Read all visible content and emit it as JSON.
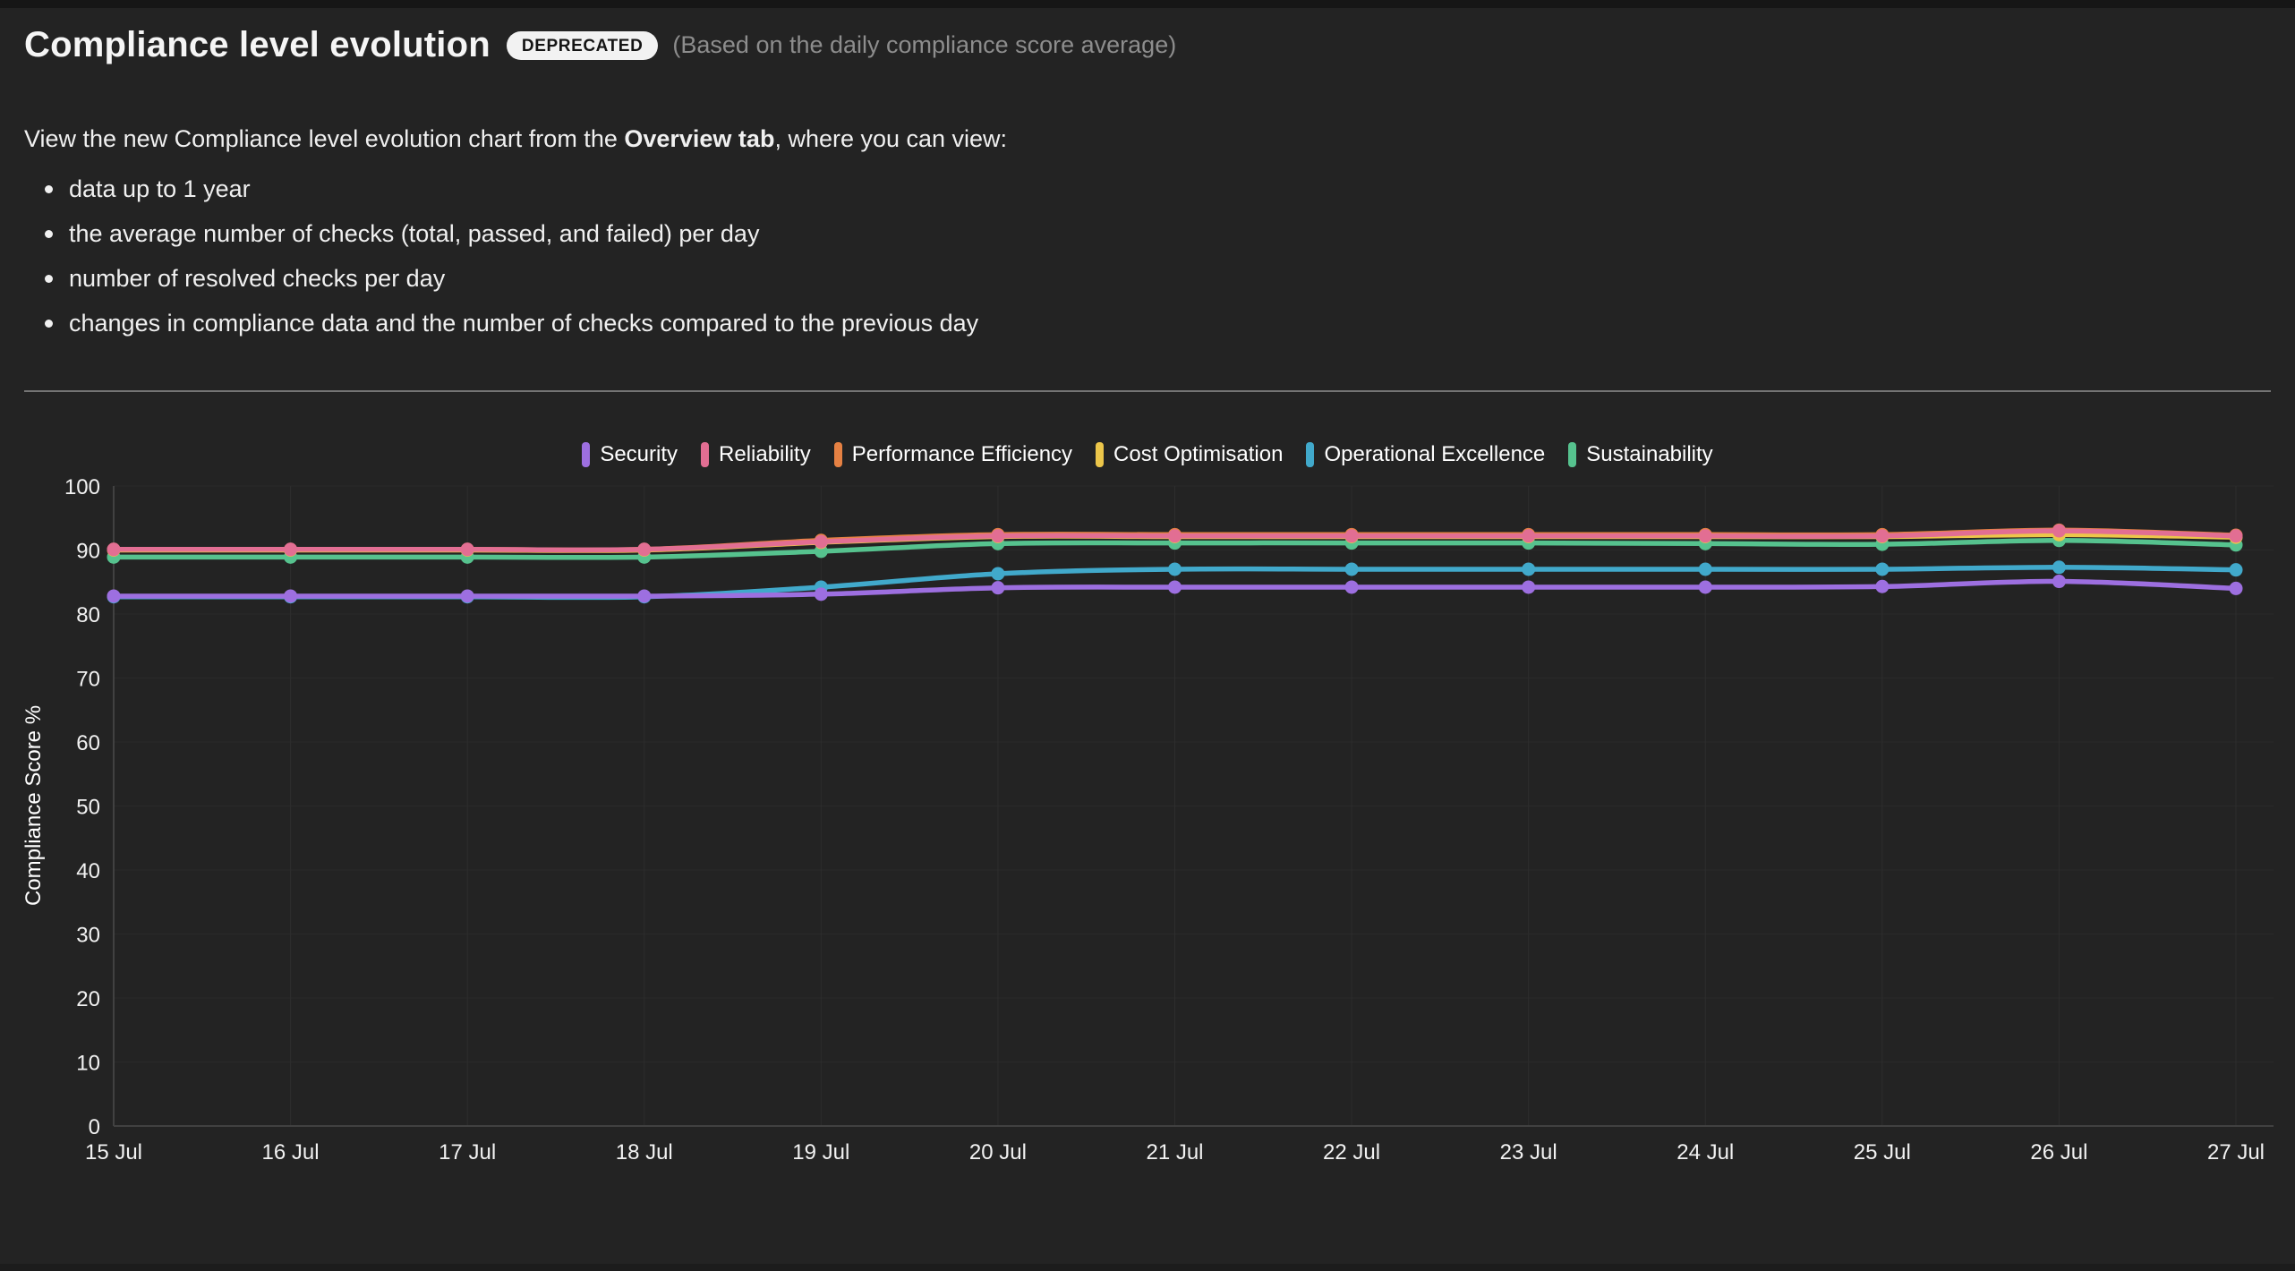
{
  "header": {
    "title": "Compliance level evolution",
    "badge": "DEPRECATED",
    "subtitle": "(Based on the daily compliance score average)"
  },
  "description": {
    "prefix": "View the new Compliance level evolution chart from the ",
    "bold_text": "Overview tab",
    "suffix": ", where you can view:",
    "bullets": [
      "data up to 1 year",
      "the average number of checks (total, passed, and failed) per day",
      "number of resolved checks per day",
      "changes in compliance data and the number of checks compared to the previous day"
    ]
  },
  "chart_data": {
    "type": "line",
    "title": "",
    "xlabel": "",
    "ylabel": "Compliance Score %",
    "ylim": [
      0,
      100
    ],
    "y_ticks": [
      0,
      10,
      20,
      30,
      40,
      50,
      60,
      70,
      80,
      90,
      100
    ],
    "grid": true,
    "legend_position": "top",
    "categories": [
      "15 Jul",
      "16 Jul",
      "17 Jul",
      "18 Jul",
      "19 Jul",
      "20 Jul",
      "21 Jul",
      "22 Jul",
      "23 Jul",
      "24 Jul",
      "25 Jul",
      "26 Jul",
      "27 Jul"
    ],
    "series": [
      {
        "name": "Security",
        "color": "#9d6fe0",
        "values": [
          82.8,
          82.8,
          82.8,
          82.8,
          83.1,
          84.1,
          84.2,
          84.2,
          84.2,
          84.2,
          84.3,
          85.1,
          84.0
        ]
      },
      {
        "name": "Reliability",
        "color": "#e26e93",
        "values": [
          90.1,
          90.1,
          90.1,
          90.1,
          91.3,
          92.2,
          92.2,
          92.2,
          92.2,
          92.2,
          92.2,
          93.0,
          92.2
        ]
      },
      {
        "name": "Performance Efficiency",
        "color": "#e58143",
        "values": [
          90.1,
          90.1,
          90.1,
          90.1,
          91.5,
          92.4,
          92.4,
          92.4,
          92.4,
          92.4,
          92.4,
          93.1,
          92.3
        ]
      },
      {
        "name": "Cost Optimisation",
        "color": "#ecc64a",
        "values": [
          90.0,
          90.0,
          90.0,
          90.0,
          91.2,
          92.1,
          92.1,
          92.1,
          92.1,
          92.1,
          92.1,
          92.4,
          92.0
        ]
      },
      {
        "name": "Operational Excellence",
        "color": "#41a9cb",
        "values": [
          82.7,
          82.7,
          82.7,
          82.7,
          84.2,
          86.3,
          87.0,
          87.0,
          87.0,
          87.0,
          87.0,
          87.3,
          86.9
        ]
      },
      {
        "name": "Sustainability",
        "color": "#56c28e",
        "values": [
          88.9,
          88.9,
          88.9,
          88.9,
          89.8,
          91.0,
          91.1,
          91.1,
          91.1,
          91.0,
          90.9,
          91.5,
          90.8
        ]
      }
    ],
    "draw_order": [
      5,
      4,
      3,
      2,
      1,
      0
    ]
  },
  "colors": {
    "background": "#232323",
    "grid_vertical": "#2d2d2d",
    "grid_horizontal": "#2a2a2a",
    "axis": "#414141",
    "divider": "#747474",
    "text_muted": "#8d8d8d"
  }
}
